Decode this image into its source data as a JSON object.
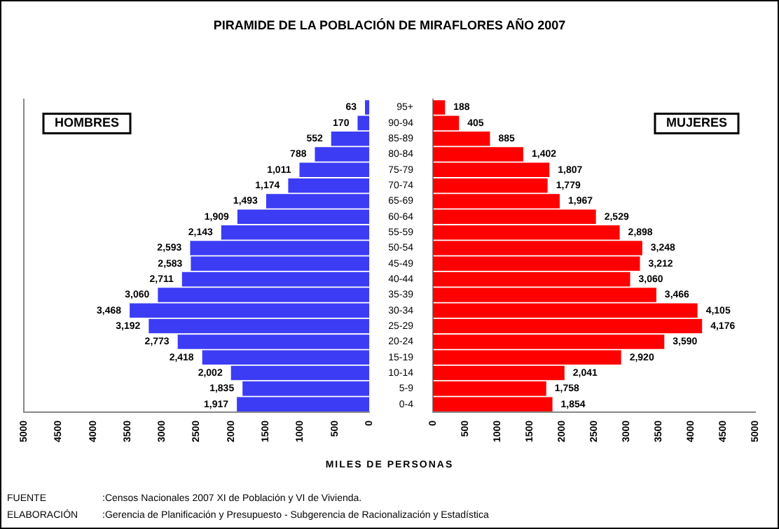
{
  "chart_data": [
    {
      "type": "bar",
      "orientation": "horizontal",
      "title": "PIRAMIDE DE LA POBLACIÓN DE MIRAFLORES  AÑO 2007",
      "xlabel": "MILES DE PERSONAS",
      "annotations": [
        "FUENTE",
        ":Censos Nacionales 2007 XI de Población y VI de Vivienda.",
        "ELABORACIÓN",
        ":Gerencia de Planificación y Presupuesto - Subgerencia de Racionalización y Estadística"
      ],
      "categories": [
        null,
        null,
        null,
        null,
        null,
        null,
        null,
        null,
        null,
        null,
        null,
        null,
        null,
        null,
        null,
        null,
        null,
        null,
        null,
        null
      ],
      "series": [
        {
          "name": "HOMBRES",
          "color": "#3c3cf5",
          "values": [
            63,
            170,
            552,
            788,
            1011,
            1174,
            1493,
            1909,
            2143,
            2593,
            2583,
            2711,
            3060,
            3468,
            3192,
            2773,
            2418,
            2002,
            1835,
            1917
          ],
          "value_labels": [
            "63",
            "170",
            "552",
            "788",
            "1,011",
            "1,174",
            "1,493",
            "1,909",
            "2,143",
            "2,593",
            "2,583",
            "2,711",
            "3,060",
            "3,468",
            "3,192",
            "2,773",
            "2,418",
            "2,002",
            "1,835",
            "1,917"
          ]
        }
      ],
      "xlim": [
        5000,
        0
      ],
      "xticks": [
        5000,
        4500,
        4000,
        3500,
        3000,
        2500,
        2000,
        1500,
        1000,
        500,
        0
      ]
    },
    {
      "type": "bar",
      "orientation": "horizontal",
      "categories": [
        "95+",
        "90-94",
        "85-89",
        "80-84",
        "75-79",
        "70-74",
        "65-69",
        "60-64",
        "55-59",
        "50-54",
        "45-49",
        "40-44",
        "35-39",
        "30-34",
        "25-29",
        "20-24",
        "15-19",
        "10-14",
        "5-9",
        "0-4"
      ],
      "series": [
        {
          "name": "MUJERES",
          "color": "#ff0000",
          "values": [
            188,
            405,
            885,
            1402,
            1807,
            1779,
            1967,
            2529,
            2898,
            3248,
            3212,
            3060,
            3466,
            4105,
            4176,
            3590,
            2920,
            2041,
            1758,
            1854
          ],
          "value_labels": [
            "188",
            "405",
            "885",
            "1,402",
            "1,807",
            "1,779",
            "1,967",
            "2,529",
            "2,898",
            "3,248",
            "3,212",
            "3,060",
            "3,466",
            "4,105",
            "4,176",
            "3,590",
            "2,920",
            "2,041",
            "1,758",
            "1,854"
          ]
        }
      ],
      "xlim": [
        0,
        5000
      ],
      "xticks": [
        0,
        500,
        1000,
        1500,
        2000,
        2500,
        3000,
        3500,
        4000,
        4500,
        5000
      ]
    }
  ]
}
